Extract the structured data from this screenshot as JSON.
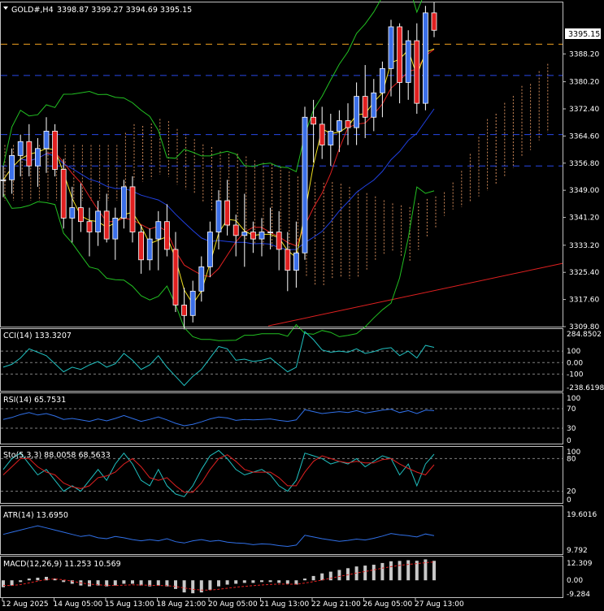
{
  "header": {
    "symbol_label": "GOLD#,H4",
    "ohlc_text": "3398.87 3399.27 3394.69 3395.15"
  },
  "colors": {
    "background": "#000000",
    "grid_frame": "#c0c0c0",
    "bull_candle": "#3b6fe8",
    "bear_candle": "#e02020",
    "bollinger": "#22c022",
    "ma_fast": "#f0e020",
    "ma_red": "#e02020",
    "ma_blue": "#2040e0",
    "ichimoku_cloud": "#d08a5a",
    "h_line_orange": "#f0a020",
    "h_line_blue": "#2848e8",
    "trendline": "#e02020",
    "indicator_line": "#20c0c0",
    "rsi_line": "#3070e8",
    "signal_red": "#e02020",
    "histogram": "#c8c8c8"
  },
  "chart_data": [
    {
      "type": "candlestick",
      "name": "main",
      "y_ticks": [
        "3395.15",
        "3388.20",
        "3380.20",
        "3372.40",
        "3364.60",
        "3356.80",
        "3349.00",
        "3341.20",
        "3333.20",
        "3325.40",
        "3317.60",
        "3309.80"
      ],
      "current_price_label": "3395.15",
      "ylim": [
        3309.8,
        3403
      ],
      "x_tick_labels": [
        "12 Aug 2025",
        "14 Aug 05:00",
        "15 Aug 13:00",
        "18 Aug 21:00",
        "20 Aug 05:00",
        "21 Aug 13:00",
        "22 Aug 21:00",
        "26 Aug 05:00",
        "27 Aug 13:00"
      ],
      "horizontal_lines": [
        {
          "price": 3391,
          "style": "dashed",
          "color": "#f0a020"
        },
        {
          "price": 3382,
          "style": "dashed",
          "color": "#2848e8"
        },
        {
          "price": 3365,
          "style": "dashed",
          "color": "#2848e8"
        },
        {
          "price": 3356,
          "style": "dashed",
          "color": "#2848e8"
        }
      ],
      "trendline": {
        "from": [
          45,
          3310
        ],
        "to": [
          100,
          3331
        ]
      },
      "candles": [
        [
          3352,
          3356,
          3347,
          3352
        ],
        [
          3352,
          3361,
          3348,
          3359
        ],
        [
          3359,
          3365,
          3353,
          3363
        ],
        [
          3363,
          3368,
          3353,
          3356
        ],
        [
          3356,
          3364,
          3350,
          3361
        ],
        [
          3361,
          3370,
          3354,
          3366
        ],
        [
          3366,
          3368,
          3353,
          3355
        ],
        [
          3355,
          3358,
          3338,
          3341
        ],
        [
          3341,
          3350,
          3334,
          3344
        ],
        [
          3344,
          3351,
          3337,
          3340
        ],
        [
          3340,
          3344,
          3330,
          3337
        ],
        [
          3337,
          3346,
          3333,
          3343
        ],
        [
          3343,
          3348,
          3334,
          3335
        ],
        [
          3335,
          3344,
          3329,
          3341
        ],
        [
          3341,
          3352,
          3338,
          3350
        ],
        [
          3350,
          3353,
          3334,
          3337
        ],
        [
          3337,
          3339,
          3325,
          3329
        ],
        [
          3329,
          3338,
          3326,
          3335
        ],
        [
          3335,
          3343,
          3326,
          3340
        ],
        [
          3340,
          3345,
          3330,
          3332
        ],
        [
          3332,
          3337,
          3314,
          3316
        ],
        [
          3316,
          3321,
          3309,
          3313
        ],
        [
          3313,
          3323,
          3311,
          3320
        ],
        [
          3320,
          3330,
          3317,
          3327
        ],
        [
          3327,
          3340,
          3324,
          3337
        ],
        [
          3337,
          3349,
          3332,
          3346
        ],
        [
          3346,
          3352,
          3336,
          3339
        ],
        [
          3339,
          3342,
          3330,
          3336
        ],
        [
          3336,
          3348,
          3327,
          3337
        ],
        [
          3337,
          3340,
          3331,
          3335
        ],
        [
          3335,
          3341,
          3330,
          3337
        ],
        [
          3337,
          3344,
          3332,
          3337
        ],
        [
          3337,
          3343,
          3326,
          3332
        ],
        [
          3332,
          3337,
          3320,
          3326
        ],
        [
          3326,
          3340,
          3321,
          3331
        ],
        [
          3331,
          3373,
          3329,
          3370
        ],
        [
          3370,
          3375,
          3357,
          3368
        ],
        [
          3368,
          3373,
          3358,
          3362
        ],
        [
          3362,
          3371,
          3356,
          3366
        ],
        [
          3366,
          3372,
          3360,
          3369
        ],
        [
          3369,
          3374,
          3362,
          3367
        ],
        [
          3367,
          3380,
          3362,
          3376
        ],
        [
          3376,
          3385,
          3364,
          3370
        ],
        [
          3370,
          3381,
          3366,
          3377
        ],
        [
          3377,
          3386,
          3370,
          3384
        ],
        [
          3384,
          3398,
          3376,
          3396
        ],
        [
          3396,
          3397,
          3374,
          3380
        ],
        [
          3380,
          3395,
          3375,
          3392
        ],
        [
          3392,
          3397,
          3371,
          3374
        ],
        [
          3374,
          3402,
          3372,
          3400
        ],
        [
          3400,
          3403,
          3393,
          3395
        ]
      ]
    },
    {
      "type": "line",
      "name": "cci",
      "title": "CCI(14) 133.3207",
      "y_ticks": [
        "284.8502",
        "100",
        "0.00",
        "-100",
        "-238.6198"
      ],
      "ylim": [
        -238.6198,
        284.8502
      ],
      "values": [
        -40,
        -15,
        40,
        120,
        90,
        60,
        -10,
        -80,
        -40,
        -60,
        -20,
        10,
        -40,
        -10,
        80,
        20,
        -60,
        -20,
        60,
        -40,
        -120,
        -200,
        -120,
        -60,
        40,
        140,
        120,
        20,
        30,
        10,
        20,
        40,
        -20,
        -80,
        -40,
        270,
        200,
        110,
        90,
        100,
        90,
        120,
        80,
        95,
        120,
        130,
        60,
        100,
        40,
        150,
        133
      ]
    },
    {
      "type": "line",
      "name": "rsi",
      "title": "RSI(14) 65.7531",
      "y_ticks": [
        "100",
        "70",
        "30",
        "0"
      ],
      "ylim": [
        0,
        100
      ],
      "values": [
        48,
        52,
        58,
        62,
        57,
        60,
        55,
        48,
        50,
        47,
        44,
        49,
        45,
        50,
        56,
        50,
        44,
        48,
        53,
        47,
        40,
        35,
        38,
        43,
        49,
        53,
        51,
        46,
        48,
        47,
        48,
        49,
        46,
        44,
        47,
        68,
        64,
        60,
        62,
        64,
        62,
        66,
        61,
        64,
        67,
        69,
        62,
        66,
        60,
        67,
        66
      ]
    },
    {
      "type": "line",
      "name": "stochastic",
      "title": "Sto(5,3,3) 88.0058 68.5633",
      "y_ticks": [
        "100",
        "80",
        "20",
        "0"
      ],
      "ylim": [
        0,
        100
      ],
      "k_values": [
        60,
        80,
        90,
        70,
        50,
        60,
        40,
        20,
        30,
        20,
        40,
        60,
        40,
        70,
        90,
        70,
        40,
        30,
        60,
        30,
        15,
        10,
        30,
        60,
        85,
        95,
        80,
        60,
        50,
        55,
        60,
        50,
        30,
        20,
        40,
        90,
        85,
        80,
        70,
        75,
        70,
        80,
        65,
        75,
        85,
        80,
        50,
        70,
        30,
        70,
        88
      ],
      "d_values": [
        50,
        65,
        80,
        80,
        65,
        55,
        50,
        35,
        28,
        25,
        30,
        45,
        48,
        55,
        70,
        80,
        65,
        45,
        40,
        45,
        30,
        18,
        18,
        35,
        60,
        80,
        87,
        75,
        60,
        55,
        55,
        55,
        45,
        30,
        30,
        55,
        75,
        85,
        80,
        75,
        72,
        75,
        72,
        72,
        78,
        80,
        70,
        62,
        55,
        50,
        68.6
      ]
    },
    {
      "type": "line",
      "name": "atr",
      "title": "ATR(14) 13.6950",
      "y_ticks": [
        "19.6016",
        "9.792"
      ],
      "ylim": [
        9.792,
        19.6016
      ],
      "values": [
        14,
        14.5,
        15,
        15.5,
        16,
        15.5,
        15,
        14.5,
        14,
        13.5,
        13.8,
        13.2,
        13,
        13.5,
        13.2,
        12.8,
        12.5,
        12.8,
        12.5,
        13,
        12.3,
        12,
        12.5,
        12.8,
        12.4,
        12.6,
        12.2,
        12,
        11.9,
        11.6,
        11.8,
        11.7,
        11.4,
        11.2,
        11.5,
        13.8,
        13.4,
        13,
        12.7,
        12.4,
        12.6,
        12.9,
        12.7,
        13.1,
        13.6,
        14.2,
        13.9,
        13.7,
        13.4,
        14.1,
        13.7
      ]
    },
    {
      "type": "bar",
      "name": "macd",
      "title": "MACD(12,26,9) 11.253 10.569",
      "y_ticks": [
        "12.309",
        "0.00",
        "-9.284"
      ],
      "ylim": [
        -9.284,
        12.309
      ],
      "histogram": [
        -4,
        -3,
        -1,
        1,
        1.5,
        2,
        1,
        -1,
        -2,
        -3,
        -3.5,
        -3,
        -3.5,
        -3,
        -2,
        -2,
        -3,
        -3.5,
        -3,
        -3.5,
        -5,
        -7,
        -7.5,
        -7,
        -5.5,
        -3.5,
        -2.5,
        -2,
        -1.5,
        -1.5,
        -1,
        -1,
        -1.5,
        -2,
        -2.5,
        1,
        2.5,
        4,
        5,
        6,
        7,
        8,
        8.5,
        9,
        10,
        11,
        11.2,
        11.6,
        11.3,
        12.1,
        11.25
      ],
      "signal": [
        -3,
        -3,
        -2.5,
        -1.5,
        -0.5,
        0.5,
        0.8,
        0.3,
        -0.5,
        -1.5,
        -2.2,
        -2.6,
        -2.9,
        -3,
        -2.8,
        -2.6,
        -2.7,
        -2.9,
        -3,
        -3.1,
        -3.6,
        -4.4,
        -5.2,
        -5.6,
        -5.6,
        -5.2,
        -4.6,
        -4,
        -3.5,
        -3.1,
        -2.7,
        -2.4,
        -2.2,
        -2.2,
        -2.3,
        -1.6,
        -0.8,
        0.2,
        1.2,
        2.2,
        3.2,
        4.2,
        5.1,
        6,
        7,
        7.9,
        8.6,
        9.2,
        9.7,
        10.2,
        10.57
      ]
    }
  ]
}
